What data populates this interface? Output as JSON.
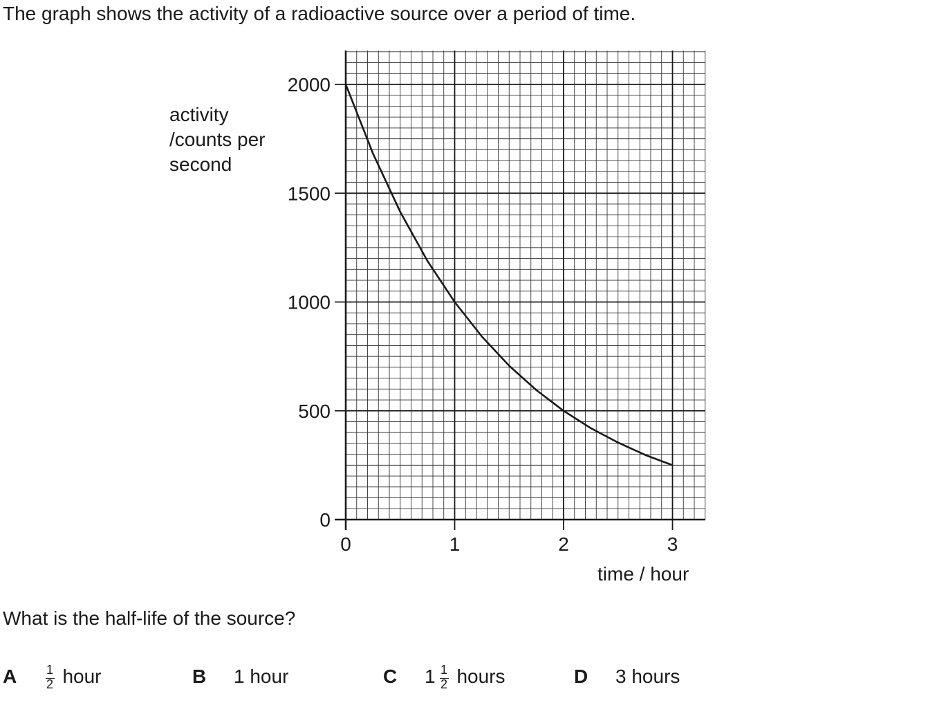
{
  "intro": "The graph shows the activity of a radioactive source over a period of time.",
  "question": "What is the half-life of the source?",
  "chart_data": {
    "type": "line",
    "ylabel_lines": [
      "activity",
      "/counts per",
      "second"
    ],
    "xlabel": "time / hour",
    "x_ticks": [
      "0",
      "1",
      "2",
      "3"
    ],
    "y_ticks": [
      "0",
      "500",
      "1000",
      "1500",
      "2000"
    ],
    "xlim": [
      0,
      3.3
    ],
    "ylim": [
      0,
      2150
    ],
    "grid": true,
    "series": [
      {
        "x": [
          0,
          0.25,
          0.5,
          0.75,
          1,
          1.25,
          1.5,
          1.75,
          2,
          2.25,
          2.5,
          2.75,
          3
        ],
        "y": [
          2000,
          1682,
          1414,
          1189,
          1000,
          841,
          707,
          595,
          500,
          420,
          354,
          297,
          250
        ]
      }
    ]
  },
  "options": [
    {
      "letter": "A",
      "whole": "",
      "frac_num": "1",
      "frac_den": "2",
      "unit": "hour"
    },
    {
      "letter": "B",
      "text": "1 hour"
    },
    {
      "letter": "C",
      "whole": "1",
      "frac_num": "1",
      "frac_den": "2",
      "unit": "hours"
    },
    {
      "letter": "D",
      "text": "3 hours"
    }
  ]
}
